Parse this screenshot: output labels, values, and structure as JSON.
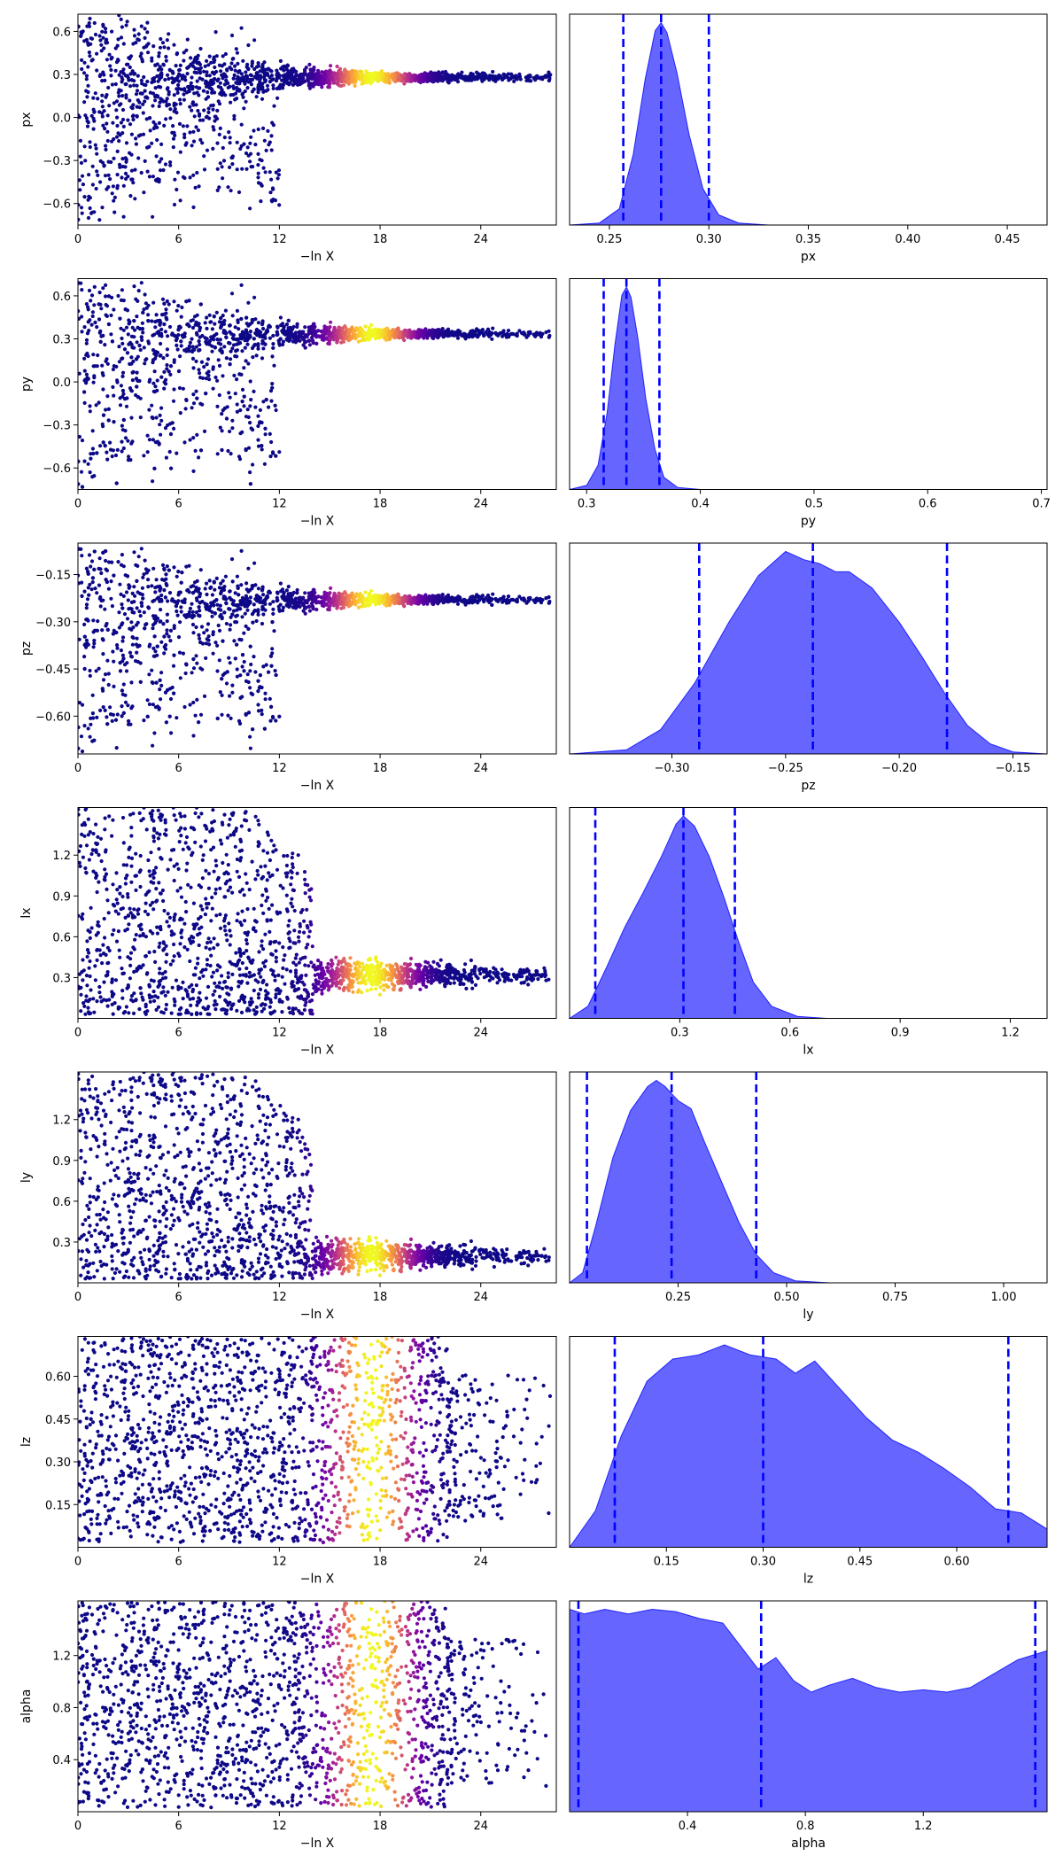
{
  "figure": {
    "x_axis_label": "−ln X",
    "trace_color_map": [
      "#0d0887",
      "#6a00a8",
      "#b12a90",
      "#e16462",
      "#fca636",
      "#f0f921"
    ],
    "posterior_fill_color": "#0000ff",
    "quantile_line_color": "#0000ff"
  },
  "chart_data": [
    {
      "type": "scatter",
      "role": "trace",
      "param": "px",
      "xlabel": "−ln X",
      "ylabel": "px",
      "xlim": [
        0,
        28.5
      ],
      "xticks": [
        "0",
        "6",
        "12",
        "18",
        "24"
      ],
      "xtick_values": [
        0,
        6,
        12,
        18,
        24
      ],
      "ylim": [
        -0.75,
        0.72
      ],
      "yticks": [
        "−0.6",
        "−0.3",
        "0.0",
        "0.3",
        "0.6"
      ],
      "ytick_values": [
        -0.6,
        -0.3,
        0.0,
        0.3,
        0.6
      ],
      "converge_value": 0.28,
      "spread_profile": "narrowing",
      "color_peak_x": 17.5
    },
    {
      "type": "area",
      "role": "posterior",
      "param": "px",
      "xlabel": "px",
      "xlim": [
        0.23,
        0.47
      ],
      "xticks": [
        "0.25",
        "0.30",
        "0.35",
        "0.40",
        "0.45"
      ],
      "xtick_values": [
        0.25,
        0.3,
        0.35,
        0.4,
        0.45
      ],
      "quantiles": [
        0.257,
        0.276,
        0.3
      ],
      "density": {
        "x": [
          0.23,
          0.245,
          0.255,
          0.262,
          0.268,
          0.273,
          0.276,
          0.279,
          0.284,
          0.29,
          0.297,
          0.305,
          0.315,
          0.33,
          0.47
        ],
        "y": [
          0,
          0.01,
          0.08,
          0.35,
          0.72,
          0.96,
          1.0,
          0.95,
          0.75,
          0.45,
          0.18,
          0.05,
          0.01,
          0,
          0
        ]
      }
    },
    {
      "type": "scatter",
      "role": "trace",
      "param": "py",
      "xlabel": "−ln X",
      "ylabel": "py",
      "xlim": [
        0,
        28.5
      ],
      "xticks": [
        "0",
        "6",
        "12",
        "18",
        "24"
      ],
      "xtick_values": [
        0,
        6,
        12,
        18,
        24
      ],
      "ylim": [
        -0.75,
        0.72
      ],
      "yticks": [
        "−0.6",
        "−0.3",
        "0.0",
        "0.3",
        "0.6"
      ],
      "ytick_values": [
        -0.6,
        -0.3,
        0.0,
        0.3,
        0.6
      ],
      "converge_value": 0.335,
      "spread_profile": "narrowing",
      "color_peak_x": 17.5
    },
    {
      "type": "area",
      "role": "posterior",
      "param": "py",
      "xlabel": "py",
      "xlim": [
        0.285,
        0.705
      ],
      "xticks": [
        "0.3",
        "0.4",
        "0.5",
        "0.6",
        "0.7"
      ],
      "xtick_values": [
        0.3,
        0.4,
        0.5,
        0.6,
        0.7
      ],
      "quantiles": [
        0.315,
        0.335,
        0.364
      ],
      "density": {
        "x": [
          0.285,
          0.3,
          0.31,
          0.318,
          0.325,
          0.331,
          0.335,
          0.339,
          0.345,
          0.352,
          0.36,
          0.368,
          0.38,
          0.4,
          0.705
        ],
        "y": [
          0,
          0.02,
          0.12,
          0.38,
          0.72,
          0.96,
          1.0,
          0.95,
          0.75,
          0.45,
          0.2,
          0.06,
          0.01,
          0,
          0
        ]
      }
    },
    {
      "type": "scatter",
      "role": "trace",
      "param": "pz",
      "xlabel": "−ln X",
      "ylabel": "pz",
      "xlim": [
        0,
        28.5
      ],
      "xticks": [
        "0",
        "6",
        "12",
        "18",
        "24"
      ],
      "xtick_values": [
        0,
        6,
        12,
        18,
        24
      ],
      "ylim": [
        -0.72,
        -0.05
      ],
      "yticks": [
        "−0.60",
        "−0.45",
        "−0.30",
        "−0.15"
      ],
      "ytick_values": [
        -0.6,
        -0.45,
        -0.3,
        -0.15
      ],
      "converge_value": -0.23,
      "spread_profile": "narrowing",
      "color_peak_x": 17.5
    },
    {
      "type": "area",
      "role": "posterior",
      "param": "pz",
      "xlabel": "pz",
      "xlim": [
        -0.345,
        -0.135
      ],
      "xticks": [
        "−0.30",
        "−0.25",
        "−0.20",
        "−0.15"
      ],
      "xtick_values": [
        -0.3,
        -0.25,
        -0.2,
        -0.15
      ],
      "quantiles": [
        -0.288,
        -0.238,
        -0.179
      ],
      "density": {
        "x": [
          -0.345,
          -0.32,
          -0.305,
          -0.29,
          -0.275,
          -0.262,
          -0.25,
          -0.242,
          -0.235,
          -0.228,
          -0.222,
          -0.212,
          -0.2,
          -0.19,
          -0.18,
          -0.17,
          -0.16,
          -0.15,
          -0.135
        ],
        "y": [
          0,
          0.02,
          0.12,
          0.35,
          0.65,
          0.88,
          1.0,
          0.96,
          0.94,
          0.9,
          0.9,
          0.82,
          0.65,
          0.48,
          0.3,
          0.14,
          0.05,
          0.01,
          0
        ]
      }
    },
    {
      "type": "scatter",
      "role": "trace",
      "param": "lx",
      "xlabel": "−ln X",
      "ylabel": "lx",
      "xlim": [
        0,
        28.5
      ],
      "xticks": [
        "0",
        "6",
        "12",
        "18",
        "24"
      ],
      "xtick_values": [
        0,
        6,
        12,
        18,
        24
      ],
      "ylim": [
        0.0,
        1.55
      ],
      "yticks": [
        "0.3",
        "0.6",
        "0.9",
        "1.2"
      ],
      "ytick_values": [
        0.3,
        0.6,
        0.9,
        1.2
      ],
      "converge_value": 0.32,
      "spread_profile": "wide",
      "color_peak_x": 17.5
    },
    {
      "type": "area",
      "role": "posterior",
      "param": "lx",
      "xlabel": "lx",
      "xlim": [
        0.0,
        1.3
      ],
      "xticks": [
        "0.3",
        "0.6",
        "0.9",
        "1.2"
      ],
      "xtick_values": [
        0.3,
        0.6,
        0.9,
        1.2
      ],
      "quantiles": [
        0.07,
        0.31,
        0.45
      ],
      "density": {
        "x": [
          0.0,
          0.05,
          0.1,
          0.15,
          0.2,
          0.25,
          0.29,
          0.31,
          0.34,
          0.38,
          0.42,
          0.46,
          0.5,
          0.55,
          0.62,
          0.7,
          1.3
        ],
        "y": [
          0,
          0.06,
          0.25,
          0.45,
          0.62,
          0.8,
          0.96,
          1.0,
          0.95,
          0.8,
          0.6,
          0.38,
          0.18,
          0.06,
          0.01,
          0,
          0
        ]
      }
    },
    {
      "type": "scatter",
      "role": "trace",
      "param": "ly",
      "xlabel": "−ln X",
      "ylabel": "ly",
      "xlim": [
        0,
        28.5
      ],
      "xticks": [
        "0",
        "6",
        "12",
        "18",
        "24"
      ],
      "xtick_values": [
        0,
        6,
        12,
        18,
        24
      ],
      "ylim": [
        0.0,
        1.55
      ],
      "yticks": [
        "0.3",
        "0.6",
        "0.9",
        "1.2"
      ],
      "ytick_values": [
        0.3,
        0.6,
        0.9,
        1.2
      ],
      "converge_value": 0.2,
      "spread_profile": "wide",
      "color_peak_x": 17.5
    },
    {
      "type": "area",
      "role": "posterior",
      "param": "ly",
      "xlabel": "ly",
      "xlim": [
        0.0,
        1.1
      ],
      "xticks": [
        "0.25",
        "0.50",
        "0.75",
        "1.00"
      ],
      "xtick_values": [
        0.25,
        0.5,
        0.75,
        1.0
      ],
      "quantiles": [
        0.04,
        0.235,
        0.43
      ],
      "density": {
        "x": [
          0.0,
          0.03,
          0.06,
          0.1,
          0.14,
          0.18,
          0.2,
          0.22,
          0.25,
          0.28,
          0.31,
          0.35,
          0.39,
          0.43,
          0.47,
          0.52,
          0.6,
          1.1
        ],
        "y": [
          0,
          0.05,
          0.28,
          0.62,
          0.85,
          0.97,
          1.0,
          0.97,
          0.9,
          0.86,
          0.7,
          0.5,
          0.3,
          0.14,
          0.05,
          0.01,
          0,
          0
        ]
      }
    },
    {
      "type": "scatter",
      "role": "trace",
      "param": "lz",
      "xlabel": "−ln X",
      "ylabel": "lz",
      "xlim": [
        0,
        28.5
      ],
      "xticks": [
        "0",
        "6",
        "12",
        "18",
        "24"
      ],
      "xtick_values": [
        0,
        6,
        12,
        18,
        24
      ],
      "ylim": [
        0.0,
        0.74
      ],
      "yticks": [
        "0.15",
        "0.30",
        "0.45",
        "0.60"
      ],
      "ytick_values": [
        0.15,
        0.3,
        0.45,
        0.6
      ],
      "converge_value": null,
      "spread_profile": "flat",
      "color_peak_x": 17.5
    },
    {
      "type": "area",
      "role": "posterior",
      "param": "lz",
      "xlabel": "lz",
      "xlim": [
        0.0,
        0.74
      ],
      "xticks": [
        "0.15",
        "0.30",
        "0.45",
        "0.60"
      ],
      "xtick_values": [
        0.15,
        0.3,
        0.45,
        0.6
      ],
      "quantiles": [
        0.07,
        0.3,
        0.68
      ],
      "density": {
        "x": [
          0.0,
          0.04,
          0.08,
          0.12,
          0.16,
          0.2,
          0.24,
          0.28,
          0.32,
          0.35,
          0.38,
          0.42,
          0.46,
          0.5,
          0.54,
          0.58,
          0.62,
          0.66,
          0.7,
          0.74
        ],
        "y": [
          0,
          0.18,
          0.55,
          0.82,
          0.93,
          0.95,
          1.0,
          0.95,
          0.93,
          0.86,
          0.92,
          0.78,
          0.64,
          0.53,
          0.47,
          0.39,
          0.3,
          0.19,
          0.17,
          0.09
        ]
      }
    },
    {
      "type": "scatter",
      "role": "trace",
      "param": "alpha",
      "xlabel": "−ln X",
      "ylabel": "alpha",
      "xlim": [
        0,
        28.5
      ],
      "xticks": [
        "0",
        "6",
        "12",
        "18",
        "24"
      ],
      "xtick_values": [
        0,
        6,
        12,
        18,
        24
      ],
      "ylim": [
        0.0,
        1.62
      ],
      "yticks": [
        "0.4",
        "0.8",
        "1.2"
      ],
      "ytick_values": [
        0.4,
        0.8,
        1.2
      ],
      "converge_value": null,
      "spread_profile": "flat",
      "color_peak_x": 17.5
    },
    {
      "type": "area",
      "role": "posterior",
      "param": "alpha",
      "xlabel": "alpha",
      "xlim": [
        0.0,
        1.62
      ],
      "xticks": [
        "0.4",
        "0.8",
        "1.2"
      ],
      "xtick_values": [
        0.4,
        0.8,
        1.2
      ],
      "quantiles": [
        0.03,
        0.65,
        1.58
      ],
      "density": {
        "x": [
          0.0,
          0.05,
          0.12,
          0.2,
          0.28,
          0.36,
          0.44,
          0.52,
          0.58,
          0.64,
          0.7,
          0.76,
          0.82,
          0.88,
          0.96,
          1.04,
          1.12,
          1.2,
          1.28,
          1.36,
          1.44,
          1.52,
          1.62
        ],
        "y": [
          0.88,
          0.86,
          0.88,
          0.86,
          0.88,
          0.87,
          0.84,
          0.82,
          0.72,
          0.62,
          0.67,
          0.57,
          0.52,
          0.55,
          0.58,
          0.54,
          0.52,
          0.53,
          0.52,
          0.54,
          0.6,
          0.66,
          0.7
        ]
      }
    }
  ]
}
